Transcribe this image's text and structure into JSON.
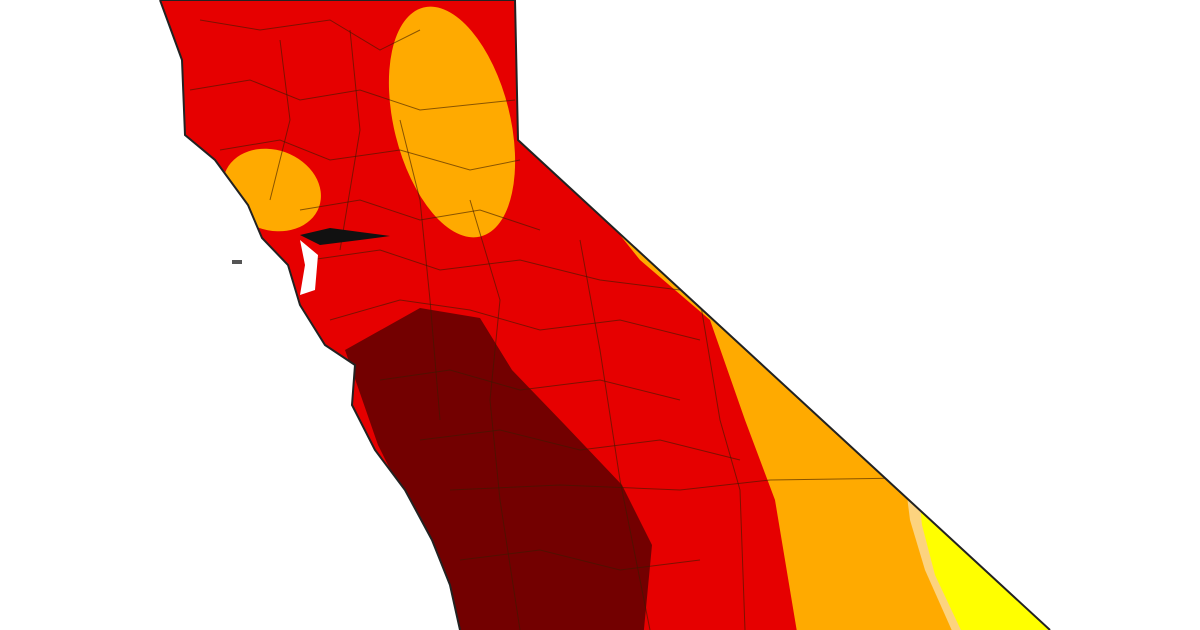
{
  "map": {
    "region": "California",
    "colors": {
      "background": "#ffffff",
      "severe": "#e60000",
      "exceptional": "#730000",
      "moderate": "#ffaa00",
      "abnormally_dry": "#ffff00",
      "transition": "#fcd37f",
      "county_lines": "#3a1a00",
      "water": "#ffffff"
    }
  }
}
